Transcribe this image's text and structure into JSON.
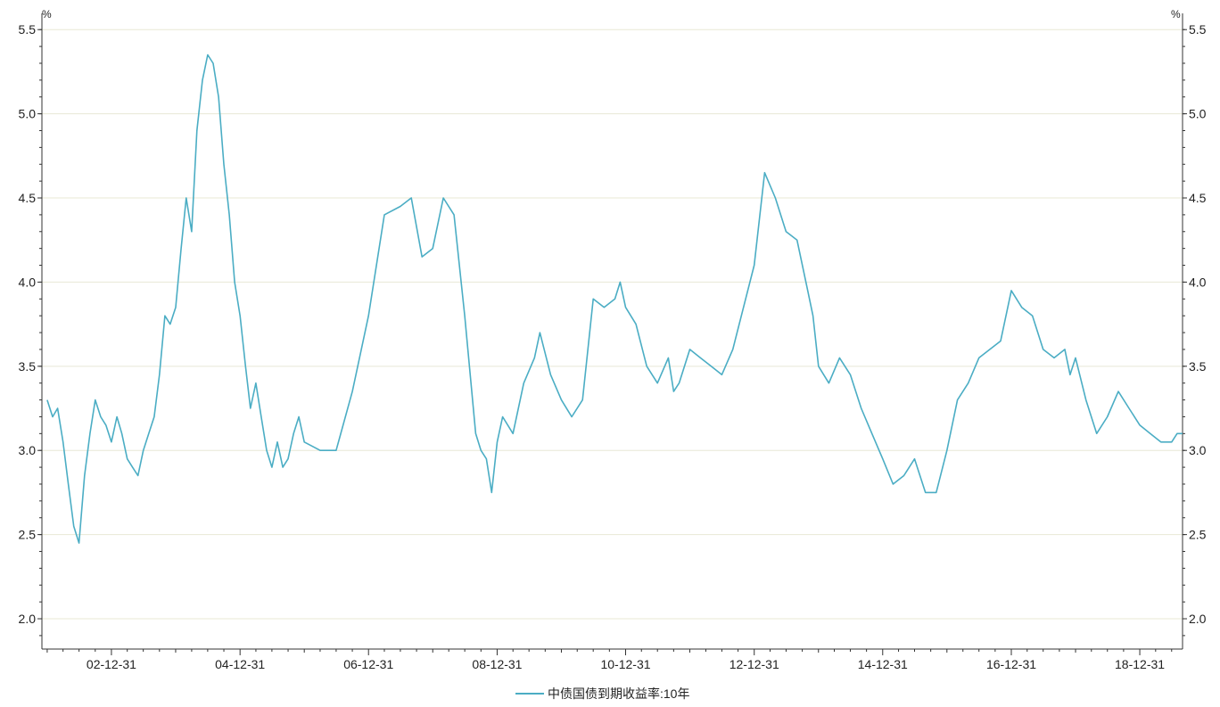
{
  "chart_data": {
    "type": "line",
    "unit_left": "%",
    "unit_right": "%",
    "x_tick_labels": [
      "02-12-31",
      "04-12-31",
      "06-12-31",
      "08-12-31",
      "10-12-31",
      "12-12-31",
      "14-12-31",
      "16-12-31",
      "18-12-31"
    ],
    "y_ticks": [
      2.0,
      2.5,
      3.0,
      3.5,
      4.0,
      4.5,
      5.0,
      5.5
    ],
    "y_tick_labels": [
      "2.0",
      "2.5",
      "3.0",
      "3.5",
      "4.0",
      "4.5",
      "5.0",
      "5.5"
    ],
    "ylim": [
      1.82,
      5.57
    ],
    "xlim": [
      "2001-12-01",
      "2019-08-31"
    ],
    "grid": true,
    "legend_position": "bottom-center",
    "colors": {
      "series": "#4badc4",
      "grid": "#e8e8d6",
      "axis": "#333333"
    },
    "series": [
      {
        "name": "中债国债到期收益率:10年",
        "x": [
          "2001-12-31",
          "2002-01-31",
          "2002-02-28",
          "2002-03-31",
          "2002-04-30",
          "2002-05-31",
          "2002-06-30",
          "2002-07-31",
          "2002-08-31",
          "2002-09-30",
          "2002-10-31",
          "2002-11-30",
          "2002-12-31",
          "2003-01-31",
          "2003-02-28",
          "2003-03-31",
          "2003-04-30",
          "2003-05-31",
          "2003-06-30",
          "2003-07-31",
          "2003-08-31",
          "2003-09-30",
          "2003-10-31",
          "2003-11-30",
          "2003-12-31",
          "2004-01-31",
          "2004-02-29",
          "2004-03-31",
          "2004-04-30",
          "2004-05-31",
          "2004-06-30",
          "2004-07-31",
          "2004-08-31",
          "2004-09-30",
          "2004-10-31",
          "2004-11-30",
          "2004-12-31",
          "2005-01-31",
          "2005-02-28",
          "2005-03-31",
          "2005-04-30",
          "2005-05-31",
          "2005-06-30",
          "2005-07-31",
          "2005-08-31",
          "2005-09-30",
          "2005-10-31",
          "2005-11-30",
          "2005-12-31",
          "2006-03-31",
          "2006-06-30",
          "2006-09-30",
          "2006-12-31",
          "2007-03-31",
          "2007-06-30",
          "2007-08-31",
          "2007-10-31",
          "2007-12-31",
          "2008-02-29",
          "2008-04-30",
          "2008-06-30",
          "2008-08-31",
          "2008-09-30",
          "2008-10-31",
          "2008-11-30",
          "2008-12-31",
          "2009-01-31",
          "2009-03-31",
          "2009-05-31",
          "2009-07-31",
          "2009-08-31",
          "2009-10-31",
          "2009-12-31",
          "2010-02-28",
          "2010-04-30",
          "2010-06-30",
          "2010-08-31",
          "2010-10-31",
          "2010-11-30",
          "2010-12-31",
          "2011-02-28",
          "2011-04-30",
          "2011-06-30",
          "2011-08-31",
          "2011-09-30",
          "2011-10-31",
          "2011-12-31",
          "2012-02-29",
          "2012-04-30",
          "2012-06-30",
          "2012-08-31",
          "2012-10-31",
          "2012-12-31",
          "2013-02-28",
          "2013-04-30",
          "2013-06-30",
          "2013-08-31",
          "2013-10-31",
          "2013-11-30",
          "2013-12-31",
          "2014-02-28",
          "2014-04-30",
          "2014-06-30",
          "2014-08-31",
          "2014-10-31",
          "2014-12-31",
          "2015-02-28",
          "2015-04-30",
          "2015-06-30",
          "2015-08-31",
          "2015-10-31",
          "2015-12-31",
          "2016-02-29",
          "2016-04-30",
          "2016-06-30",
          "2016-08-31",
          "2016-10-31",
          "2016-12-31",
          "2017-02-28",
          "2017-04-30",
          "2017-06-30",
          "2017-08-31",
          "2017-10-31",
          "2017-11-30",
          "2017-12-31",
          "2018-02-28",
          "2018-04-30",
          "2018-06-30",
          "2018-08-31",
          "2018-10-31",
          "2018-12-31",
          "2019-02-28",
          "2019-04-30",
          "2019-06-30",
          "2019-07-31",
          "2019-08-31"
        ],
        "values": [
          3.3,
          3.2,
          3.25,
          3.05,
          2.8,
          2.55,
          2.45,
          2.85,
          3.1,
          3.3,
          3.2,
          3.15,
          3.05,
          3.2,
          3.1,
          2.95,
          2.9,
          2.85,
          3.0,
          3.1,
          3.2,
          3.45,
          3.8,
          3.75,
          3.85,
          4.2,
          4.5,
          4.3,
          4.9,
          5.2,
          5.35,
          5.3,
          5.1,
          4.7,
          4.4,
          4.0,
          3.8,
          3.5,
          3.25,
          3.4,
          3.2,
          3.0,
          2.9,
          3.05,
          2.9,
          2.95,
          3.1,
          3.2,
          3.05,
          3.0,
          3.0,
          3.35,
          3.8,
          4.4,
          4.45,
          4.5,
          4.15,
          4.2,
          4.5,
          4.4,
          3.8,
          3.1,
          3.0,
          2.95,
          2.75,
          3.05,
          3.2,
          3.1,
          3.4,
          3.55,
          3.7,
          3.45,
          3.3,
          3.2,
          3.3,
          3.9,
          3.85,
          3.9,
          4.0,
          3.85,
          3.75,
          3.5,
          3.4,
          3.55,
          3.35,
          3.4,
          3.6,
          3.55,
          3.5,
          3.45,
          3.6,
          3.85,
          4.1,
          4.65,
          4.5,
          4.3,
          4.25,
          3.95,
          3.8,
          3.5,
          3.4,
          3.55,
          3.45,
          3.25,
          3.1,
          2.95,
          2.8,
          2.85,
          2.95,
          2.75,
          2.75,
          3.0,
          3.3,
          3.4,
          3.55,
          3.6,
          3.65,
          3.95,
          3.85,
          3.8,
          3.6,
          3.55,
          3.6,
          3.45,
          3.55,
          3.3,
          3.1,
          3.2,
          3.35,
          3.25,
          3.15,
          3.1,
          3.05,
          3.05,
          3.1,
          3.1
        ]
      }
    ]
  }
}
